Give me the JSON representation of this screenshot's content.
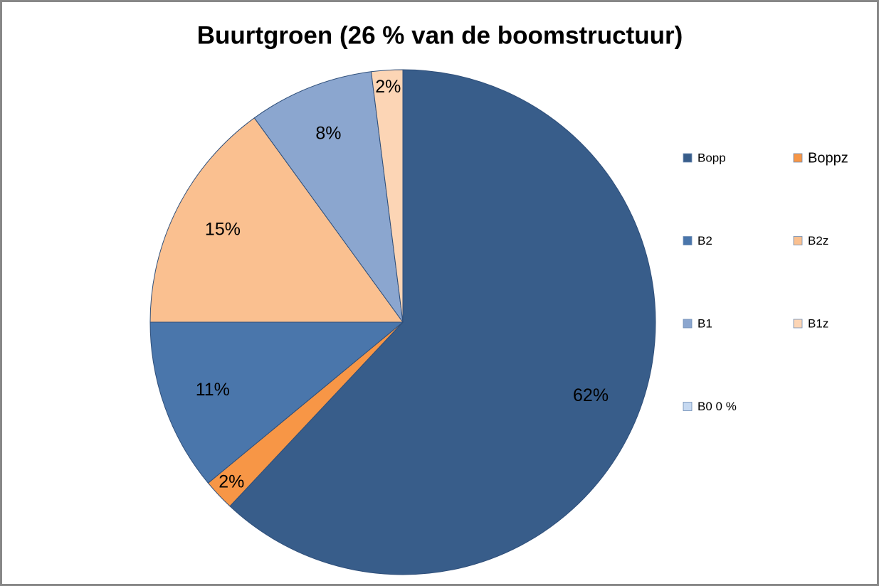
{
  "chart_data": {
    "type": "pie",
    "title": "Buurtgroen (26 % van de boomstructuur)",
    "categories": [
      "Bopp",
      "Boppz",
      "B2",
      "B2z",
      "B1",
      "B1z",
      "B0  0 %"
    ],
    "values": [
      62,
      2,
      11,
      15,
      8,
      2,
      0
    ],
    "value_labels": [
      "62%",
      "2%",
      "11%",
      "15%",
      "8%",
      "2%",
      null
    ],
    "colors": [
      "#385d8a",
      "#f79646",
      "#4a76ab",
      "#fac090",
      "#8ba6cf",
      "#fcd5b5",
      "#c6d9f1"
    ],
    "legend": "right"
  }
}
